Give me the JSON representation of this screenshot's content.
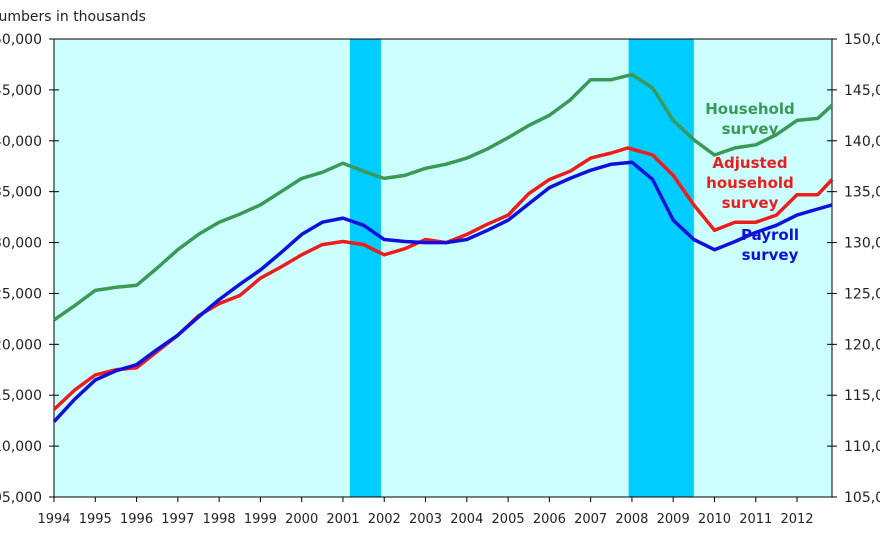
{
  "chart_data": {
    "type": "line",
    "title": "",
    "ylabel": "Numbers in thousands",
    "xlabel": "",
    "ylim": [
      105000,
      150000
    ],
    "xlim": [
      1994,
      2012.85
    ],
    "y_ticks": [
      "105,000",
      "110,000",
      "115,000",
      "120,000",
      "125,000",
      "130,000",
      "135,000",
      "140,000",
      "145,000",
      "150,000"
    ],
    "y_tick_values": [
      105000,
      110000,
      115000,
      120000,
      125000,
      130000,
      135000,
      140000,
      145000,
      150000
    ],
    "x_ticks": [
      "1994",
      "1995",
      "1996",
      "1997",
      "1998",
      "1999",
      "2000",
      "2001",
      "2002",
      "2003",
      "2004",
      "2005",
      "2006",
      "2007",
      "2008",
      "2009",
      "2010",
      "2011",
      "2012"
    ],
    "recessions": [
      [
        2001.17,
        2001.92
      ],
      [
        2007.92,
        2009.5
      ]
    ],
    "series": [
      {
        "name": "Household survey",
        "label_lines": [
          "Household",
          "survey"
        ],
        "color": "#3a9a55",
        "x": [
          1994,
          1994.5,
          1995,
          1995.5,
          1996,
          1996.5,
          1997,
          1997.5,
          1998,
          1998.5,
          1999,
          1999.5,
          2000,
          2000.5,
          2001,
          2001.5,
          2002,
          2002.5,
          2003,
          2003.5,
          2004,
          2004.5,
          2005,
          2005.5,
          2006,
          2006.5,
          2007,
          2007.5,
          2008,
          2008.5,
          2009,
          2009.5,
          2010,
          2010.5,
          2011,
          2011.5,
          2012,
          2012.5,
          2012.85
        ],
        "values": [
          122400,
          123800,
          125300,
          125600,
          125800,
          127500,
          129300,
          130800,
          132000,
          132800,
          133700,
          135000,
          136300,
          136900,
          137800,
          137000,
          136300,
          136600,
          137300,
          137700,
          138300,
          139200,
          140300,
          141500,
          142500,
          144000,
          146000,
          146000,
          146500,
          145200,
          142000,
          140100,
          138600,
          139300,
          139600,
          140600,
          142000,
          142200,
          143500
        ]
      },
      {
        "name": "Adjusted household survey",
        "label_lines": [
          "Adjusted",
          "household",
          "survey"
        ],
        "color": "#ee1c1c",
        "x": [
          1994,
          1994.5,
          1995,
          1995.5,
          1996,
          1996.5,
          1997,
          1997.5,
          1998,
          1998.5,
          1999,
          1999.5,
          2000,
          2000.5,
          2001,
          2001.5,
          2002,
          2002.5,
          2003,
          2003.5,
          2004,
          2004.5,
          2005,
          2005.5,
          2006,
          2006.5,
          2007,
          2007.5,
          2007.9,
          2008.5,
          2009,
          2009.5,
          2010,
          2010.5,
          2011,
          2011.5,
          2012,
          2012.5,
          2012.85
        ],
        "values": [
          113600,
          115500,
          117000,
          117500,
          117700,
          119300,
          120900,
          122800,
          124000,
          124800,
          126500,
          127600,
          128800,
          129800,
          130100,
          129800,
          128800,
          129400,
          130300,
          130000,
          130800,
          131800,
          132700,
          134800,
          136200,
          137000,
          138300,
          138800,
          139300,
          138600,
          136600,
          133700,
          131200,
          132000,
          132000,
          132700,
          134700,
          134700,
          136200
        ]
      },
      {
        "name": "Payroll survey",
        "label_lines": [
          "Payroll",
          "survey"
        ],
        "color": "#1010dd",
        "x": [
          1994,
          1994.5,
          1995,
          1995.5,
          1996,
          1996.5,
          1997,
          1997.5,
          1998,
          1998.5,
          1999,
          1999.5,
          2000,
          2000.5,
          2001,
          2001.5,
          2002,
          2002.5,
          2003,
          2003.5,
          2004,
          2004.5,
          2005,
          2005.5,
          2006,
          2006.5,
          2007,
          2007.5,
          2008,
          2008.5,
          2009,
          2009.5,
          2010,
          2010.5,
          2011,
          2011.5,
          2012,
          2012.5,
          2012.85
        ],
        "values": [
          112400,
          114600,
          116500,
          117400,
          118000,
          119500,
          120900,
          122700,
          124400,
          125900,
          127300,
          129000,
          130800,
          132000,
          132400,
          131700,
          130300,
          130100,
          130000,
          130000,
          130300,
          131200,
          132200,
          133800,
          135400,
          136300,
          137100,
          137700,
          137900,
          136200,
          132200,
          130300,
          129300,
          130100,
          131000,
          131700,
          132700,
          133300,
          133700
        ]
      }
    ]
  }
}
